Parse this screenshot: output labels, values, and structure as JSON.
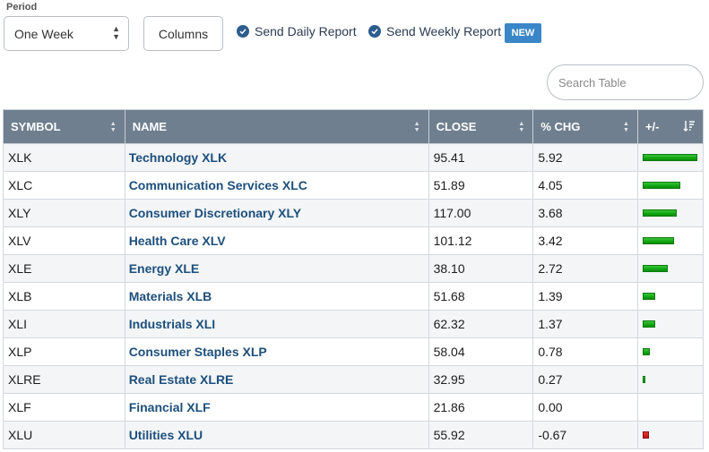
{
  "period": {
    "label": "Period",
    "value": "One Week"
  },
  "columns_button": "Columns",
  "reports": {
    "daily": "Send Daily Report",
    "weekly": "Send Weekly Report",
    "new_badge": "NEW"
  },
  "search": {
    "placeholder": "Search Table"
  },
  "table": {
    "headers": {
      "symbol": "SYMBOL",
      "name": "NAME",
      "close": "CLOSE",
      "chg": "% CHG",
      "plusminus": "+/-"
    },
    "max_abs_chg": 5.92,
    "positive_color": "#16a816",
    "negative_color": "#c21212",
    "rows": [
      {
        "symbol": "XLK",
        "name": "Technology XLK",
        "close": "95.41",
        "chg": "5.92"
      },
      {
        "symbol": "XLC",
        "name": "Communication Services XLC",
        "close": "51.89",
        "chg": "4.05"
      },
      {
        "symbol": "XLY",
        "name": "Consumer Discretionary XLY",
        "close": "117.00",
        "chg": "3.68"
      },
      {
        "symbol": "XLV",
        "name": "Health Care XLV",
        "close": "101.12",
        "chg": "3.42"
      },
      {
        "symbol": "XLE",
        "name": "Energy XLE",
        "close": "38.10",
        "chg": "2.72"
      },
      {
        "symbol": "XLB",
        "name": "Materials XLB",
        "close": "51.68",
        "chg": "1.39"
      },
      {
        "symbol": "XLI",
        "name": "Industrials XLI",
        "close": "62.32",
        "chg": "1.37"
      },
      {
        "symbol": "XLP",
        "name": "Consumer Staples XLP",
        "close": "58.04",
        "chg": "0.78"
      },
      {
        "symbol": "XLRE",
        "name": "Real Estate XLRE",
        "close": "32.95",
        "chg": "0.27"
      },
      {
        "symbol": "XLF",
        "name": "Financial XLF",
        "close": "21.86",
        "chg": "0.00"
      },
      {
        "symbol": "XLU",
        "name": "Utilities XLU",
        "close": "55.92",
        "chg": "-0.67"
      }
    ]
  }
}
